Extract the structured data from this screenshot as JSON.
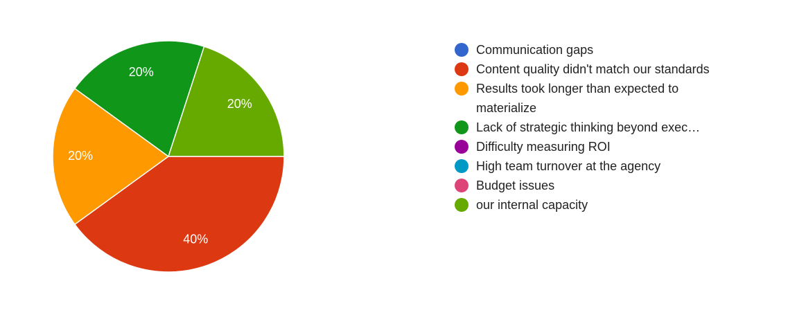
{
  "chart_data": {
    "type": "pie",
    "categories": [
      "Communication gaps",
      "Content quality didn't match our standards",
      "Results took longer than expected to materialize",
      "Lack of strategic thinking beyond exec…",
      "Difficulty measuring ROI",
      "High team turnover at the agency",
      "Budget issues",
      "our internal capacity"
    ],
    "values": [
      0,
      40,
      20,
      20,
      0,
      0,
      0,
      20
    ],
    "value_labels": [
      null,
      "40%",
      "20%",
      "20%",
      null,
      null,
      null,
      "20%"
    ],
    "colors": [
      "#3366cc",
      "#dc3912",
      "#ff9900",
      "#109618",
      "#990099",
      "#0099c6",
      "#dd4477",
      "#66aa00"
    ]
  }
}
